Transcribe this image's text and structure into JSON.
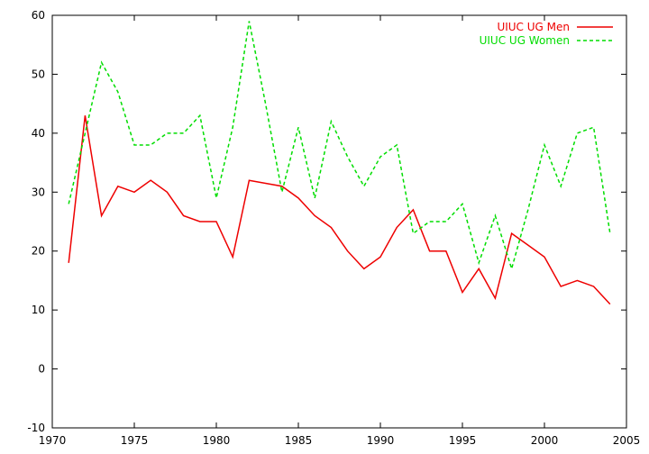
{
  "chart_data": {
    "type": "line",
    "title": "",
    "xlabel": "",
    "ylabel": "",
    "xlim": [
      1970,
      2005
    ],
    "ylim": [
      -10,
      60
    ],
    "x_ticks": [
      1970,
      1975,
      1980,
      1985,
      1990,
      1995,
      2000,
      2005
    ],
    "y_ticks": [
      -10,
      0,
      10,
      20,
      30,
      40,
      50,
      60
    ],
    "grid": false,
    "legend_position": "top-right",
    "x": [
      1971,
      1972,
      1973,
      1974,
      1975,
      1976,
      1977,
      1978,
      1979,
      1980,
      1981,
      1982,
      1983,
      1984,
      1985,
      1986,
      1987,
      1988,
      1989,
      1990,
      1991,
      1992,
      1993,
      1994,
      1995,
      1996,
      1997,
      1998,
      1999,
      2000,
      2001,
      2002,
      2003,
      2004
    ],
    "series": [
      {
        "name": "UIUC UG Men",
        "color": "#ee0000",
        "style": "solid",
        "values": [
          18,
          43,
          26,
          31,
          30,
          32,
          30,
          26,
          25,
          25,
          19,
          32,
          31.5,
          31,
          29,
          26,
          24,
          20,
          17,
          19,
          24,
          27,
          20,
          20,
          13,
          17,
          12,
          23,
          21,
          19,
          14,
          15,
          14,
          11
        ]
      },
      {
        "name": "UIUC UG Women",
        "color": "#00dd00",
        "style": "dashed",
        "values": [
          28,
          40,
          52,
          47,
          38,
          38,
          40,
          40,
          43,
          29,
          41,
          59,
          45,
          30,
          41,
          29,
          42,
          36,
          31,
          36,
          38,
          23,
          25,
          25,
          28,
          18,
          26,
          17,
          27,
          38,
          31,
          40,
          41,
          23
        ]
      }
    ]
  }
}
